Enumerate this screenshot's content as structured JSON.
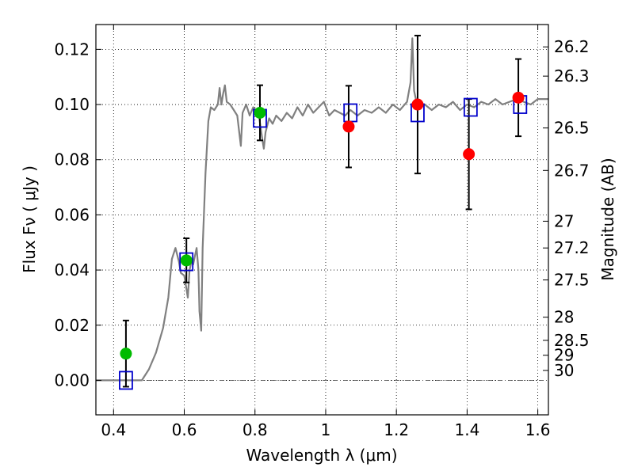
{
  "chart_data": {
    "type": "scatter",
    "xlabel": "Wavelength  λ (μm)",
    "ylabel": "Flux  Fν  ( μJy )",
    "ylabel_right": "Magnitude (AB)",
    "xlim": [
      0.35,
      1.63
    ],
    "ylim": [
      -0.0125,
      0.129
    ],
    "grid": true,
    "x_ticks": [
      0.4,
      0.6,
      0.8,
      1.0,
      1.2,
      1.4,
      1.6
    ],
    "x_tick_labels": [
      "0.4",
      "0.6",
      "0.8",
      "1",
      "1.2",
      "1.4",
      "1.6"
    ],
    "y_ticks": [
      0.0,
      0.02,
      0.04,
      0.06,
      0.08,
      0.1,
      0.12
    ],
    "y_tick_labels": [
      "0.00",
      "0.02",
      "0.04",
      "0.06",
      "0.08",
      "0.10",
      "0.12"
    ],
    "right_ticks": [
      {
        "label": "26.2",
        "flux": 0.1209
      },
      {
        "label": "26.3",
        "flux": 0.1103
      },
      {
        "label": "26.5",
        "flux": 0.0915
      },
      {
        "label": "26.7",
        "flux": 0.0761
      },
      {
        "label": "27",
        "flux": 0.0577
      },
      {
        "label": "27.2",
        "flux": 0.048
      },
      {
        "label": "27.5",
        "flux": 0.0364
      },
      {
        "label": "28",
        "flux": 0.0229
      },
      {
        "label": "28.5",
        "flux": 0.0145
      },
      {
        "label": "29",
        "flux": 0.0091
      },
      {
        "label": "30",
        "flux": 0.0036
      }
    ],
    "zero_line": 0.0,
    "series": [
      {
        "name": "model spectrum",
        "kind": "line",
        "color": "#808080",
        "points": [
          [
            0.35,
            0.0
          ],
          [
            0.48,
            0.0
          ],
          [
            0.5,
            0.004
          ],
          [
            0.52,
            0.01
          ],
          [
            0.54,
            0.019
          ],
          [
            0.555,
            0.03
          ],
          [
            0.565,
            0.044
          ],
          [
            0.575,
            0.048
          ],
          [
            0.585,
            0.043
          ],
          [
            0.59,
            0.039
          ],
          [
            0.6,
            0.038
          ],
          [
            0.605,
            0.034
          ],
          [
            0.61,
            0.03
          ],
          [
            0.615,
            0.04
          ],
          [
            0.62,
            0.043
          ],
          [
            0.625,
            0.042
          ],
          [
            0.63,
            0.045
          ],
          [
            0.635,
            0.048
          ],
          [
            0.64,
            0.04
          ],
          [
            0.643,
            0.025
          ],
          [
            0.648,
            0.018
          ],
          [
            0.652,
            0.048
          ],
          [
            0.66,
            0.075
          ],
          [
            0.668,
            0.094
          ],
          [
            0.675,
            0.099
          ],
          [
            0.685,
            0.098
          ],
          [
            0.695,
            0.1
          ],
          [
            0.7,
            0.106
          ],
          [
            0.705,
            0.1
          ],
          [
            0.71,
            0.104
          ],
          [
            0.715,
            0.107
          ],
          [
            0.72,
            0.101
          ],
          [
            0.73,
            0.1
          ],
          [
            0.74,
            0.098
          ],
          [
            0.75,
            0.096
          ],
          [
            0.76,
            0.085
          ],
          [
            0.765,
            0.097
          ],
          [
            0.775,
            0.1
          ],
          [
            0.785,
            0.096
          ],
          [
            0.795,
            0.099
          ],
          [
            0.81,
            0.097
          ],
          [
            0.82,
            0.088
          ],
          [
            0.825,
            0.084
          ],
          [
            0.83,
            0.09
          ],
          [
            0.84,
            0.095
          ],
          [
            0.85,
            0.093
          ],
          [
            0.86,
            0.096
          ],
          [
            0.875,
            0.094
          ],
          [
            0.89,
            0.097
          ],
          [
            0.905,
            0.095
          ],
          [
            0.92,
            0.099
          ],
          [
            0.935,
            0.096
          ],
          [
            0.95,
            0.1
          ],
          [
            0.965,
            0.097
          ],
          [
            0.98,
            0.099
          ],
          [
            0.995,
            0.101
          ],
          [
            1.01,
            0.096
          ],
          [
            1.025,
            0.098
          ],
          [
            1.04,
            0.097
          ],
          [
            1.055,
            0.096
          ],
          [
            1.07,
            0.098
          ],
          [
            1.09,
            0.096
          ],
          [
            1.11,
            0.098
          ],
          [
            1.13,
            0.097
          ],
          [
            1.15,
            0.099
          ],
          [
            1.17,
            0.097
          ],
          [
            1.19,
            0.1
          ],
          [
            1.21,
            0.098
          ],
          [
            1.23,
            0.101
          ],
          [
            1.24,
            0.108
          ],
          [
            1.245,
            0.124
          ],
          [
            1.25,
            0.105
          ],
          [
            1.26,
            0.099
          ],
          [
            1.28,
            0.1
          ],
          [
            1.3,
            0.098
          ],
          [
            1.32,
            0.1
          ],
          [
            1.34,
            0.099
          ],
          [
            1.36,
            0.101
          ],
          [
            1.38,
            0.098
          ],
          [
            1.4,
            0.1
          ],
          [
            1.42,
            0.099
          ],
          [
            1.44,
            0.101
          ],
          [
            1.46,
            0.1
          ],
          [
            1.48,
            0.102
          ],
          [
            1.5,
            0.1
          ],
          [
            1.52,
            0.101
          ],
          [
            1.54,
            0.102
          ],
          [
            1.56,
            0.101
          ],
          [
            1.58,
            0.1
          ],
          [
            1.6,
            0.102
          ],
          [
            1.63,
            0.102
          ]
        ]
      },
      {
        "name": "model photometry",
        "kind": "open-square",
        "color": "#0000cc",
        "points": [
          [
            0.435,
            0.0
          ],
          [
            0.606,
            0.043
          ],
          [
            0.814,
            0.095
          ],
          [
            1.07,
            0.097
          ],
          [
            1.26,
            0.097
          ],
          [
            1.41,
            0.099
          ],
          [
            1.55,
            0.1
          ]
        ]
      },
      {
        "name": "observed (green)",
        "kind": "dot",
        "color": "#00bb00",
        "points": [
          [
            0.435,
            0.0097
          ],
          [
            0.606,
            0.0435
          ],
          [
            0.814,
            0.097
          ]
        ],
        "errors": [
          0.012,
          0.008,
          0.01
        ]
      },
      {
        "name": "observed (red)",
        "kind": "dot",
        "color": "#ff0000",
        "points": [
          [
            1.065,
            0.092
          ],
          [
            1.26,
            0.1
          ],
          [
            1.405,
            0.082
          ],
          [
            1.545,
            0.1025
          ]
        ],
        "errors": [
          0.0148,
          0.025,
          0.02,
          0.014
        ]
      }
    ]
  }
}
